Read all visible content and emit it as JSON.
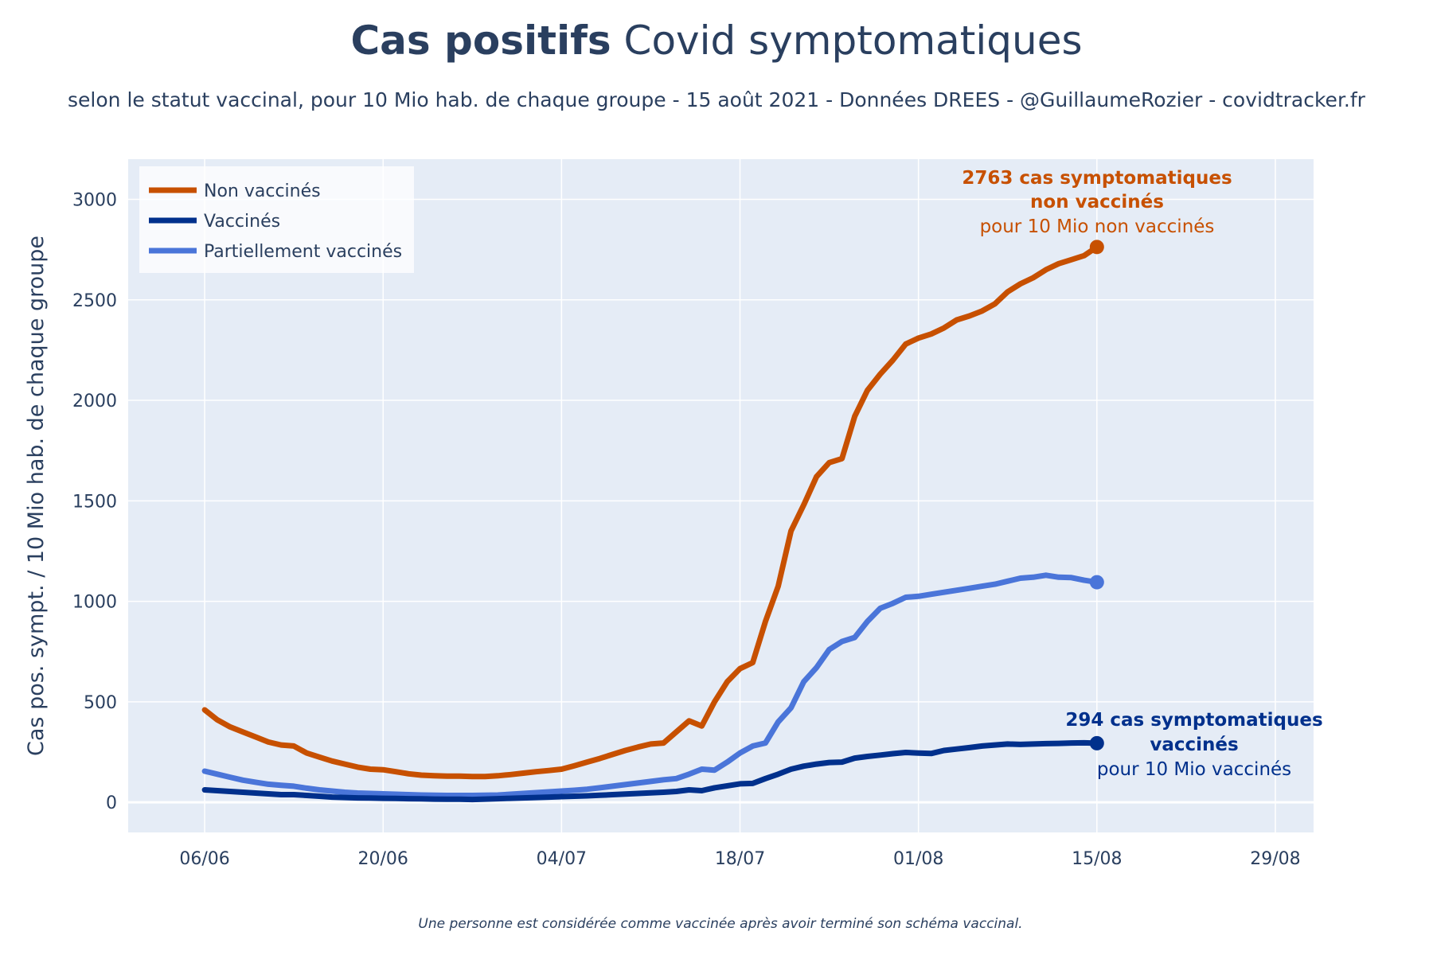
{
  "title": {
    "bold": "Cas positifs",
    "rest": " Covid symptomatiques"
  },
  "subtitle": "selon le statut vaccinal, pour 10 Mio hab. de chaque groupe - 15 août 2021 - Données DREES - @GuillaumeRozier - covidtracker.fr",
  "footnote": "Une personne est considérée comme vaccinée après avoir terminé son schéma vaccinal.",
  "chart_data": {
    "type": "line",
    "ylabel": "Cas pos. sympt. / 10 Mio hab. de chaque groupe",
    "xlabel": "",
    "x_tick_labels": [
      "06/06",
      "20/06",
      "04/07",
      "18/07",
      "01/08",
      "15/08",
      "29/08"
    ],
    "x_ticks_day": [
      0,
      14,
      28,
      42,
      56,
      70,
      84
    ],
    "xlim_day": [
      -6,
      87
    ],
    "y_ticks": [
      0,
      500,
      1000,
      1500,
      2000,
      2500,
      3000
    ],
    "ylim": [
      -150,
      3200
    ],
    "grid": true,
    "legend_position": "top-left",
    "x_dates": [
      "2021-06-06",
      "2021-06-07",
      "2021-06-08",
      "2021-06-09",
      "2021-06-10",
      "2021-06-11",
      "2021-06-12",
      "2021-06-13",
      "2021-06-14",
      "2021-06-15",
      "2021-06-16",
      "2021-06-17",
      "2021-06-18",
      "2021-06-19",
      "2021-06-20",
      "2021-06-21",
      "2021-06-22",
      "2021-06-23",
      "2021-06-24",
      "2021-06-25",
      "2021-06-26",
      "2021-06-27",
      "2021-06-28",
      "2021-06-29",
      "2021-06-30",
      "2021-07-01",
      "2021-07-02",
      "2021-07-03",
      "2021-07-04",
      "2021-07-05",
      "2021-07-06",
      "2021-07-07",
      "2021-07-08",
      "2021-07-09",
      "2021-07-10",
      "2021-07-11",
      "2021-07-12",
      "2021-07-13",
      "2021-07-14",
      "2021-07-15",
      "2021-07-16",
      "2021-07-17",
      "2021-07-18",
      "2021-07-19",
      "2021-07-20",
      "2021-07-21",
      "2021-07-22",
      "2021-07-23",
      "2021-07-24",
      "2021-07-25",
      "2021-07-26",
      "2021-07-27",
      "2021-07-28",
      "2021-07-29",
      "2021-07-30",
      "2021-07-31",
      "2021-08-01",
      "2021-08-02",
      "2021-08-03",
      "2021-08-04",
      "2021-08-05",
      "2021-08-06",
      "2021-08-07",
      "2021-08-08",
      "2021-08-09",
      "2021-08-10",
      "2021-08-11",
      "2021-08-12",
      "2021-08-13",
      "2021-08-14",
      "2021-08-15"
    ],
    "series": [
      {
        "name": "Non vaccinés",
        "color": "#c75000",
        "values": [
          460,
          410,
          375,
          350,
          325,
          300,
          285,
          280,
          245,
          225,
          205,
          190,
          175,
          165,
          162,
          152,
          142,
          135,
          132,
          130,
          130,
          128,
          128,
          132,
          138,
          145,
          152,
          158,
          165,
          182,
          200,
          218,
          238,
          258,
          275,
          290,
          295,
          350,
          405,
          380,
          500,
          600,
          665,
          695,
          900,
          1075,
          1350,
          1480,
          1620,
          1690,
          1710,
          1920,
          2050,
          2130,
          2200,
          2280,
          2310,
          2330,
          2360,
          2400,
          2420,
          2445,
          2480,
          2540,
          2580,
          2610,
          2650,
          2680,
          2700,
          2720,
          2763
        ],
        "end_label": [
          "2763 cas symptomatiques",
          "non vaccinés"
        ],
        "end_sublabel": "pour 10 Mio non vaccinés"
      },
      {
        "name": "Vaccinés",
        "color": "#00308c",
        "values": [
          62,
          58,
          54,
          50,
          46,
          42,
          38,
          38,
          34,
          30,
          26,
          24,
          22,
          21,
          20,
          19,
          18,
          17,
          16,
          15,
          15,
          14,
          16,
          18,
          20,
          22,
          24,
          26,
          28,
          30,
          32,
          35,
          38,
          41,
          44,
          47,
          50,
          54,
          62,
          58,
          72,
          82,
          92,
          94,
          118,
          140,
          165,
          180,
          190,
          198,
          200,
          220,
          228,
          235,
          242,
          248,
          245,
          243,
          258,
          265,
          272,
          280,
          285,
          290,
          288,
          290,
          292,
          293,
          295,
          296,
          294
        ],
        "end_label": [
          "294 cas symptomatiques",
          "vaccinés"
        ],
        "end_sublabel": "pour 10 Mio vaccinés"
      },
      {
        "name": "Partiellement vaccinés",
        "color": "#4a75d9",
        "values": [
          155,
          140,
          125,
          110,
          100,
          90,
          85,
          80,
          70,
          62,
          56,
          50,
          46,
          44,
          42,
          40,
          38,
          36,
          35,
          34,
          34,
          34,
          35,
          36,
          40,
          44,
          48,
          52,
          56,
          60,
          65,
          72,
          80,
          88,
          96,
          104,
          112,
          118,
          140,
          165,
          160,
          200,
          245,
          280,
          295,
          400,
          470,
          600,
          670,
          760,
          800,
          820,
          900,
          965,
          990,
          1020,
          1025,
          1035,
          1045,
          1055,
          1065,
          1075,
          1085,
          1100,
          1115,
          1120,
          1130,
          1120,
          1118,
          1105,
          1095
        ]
      }
    ]
  }
}
